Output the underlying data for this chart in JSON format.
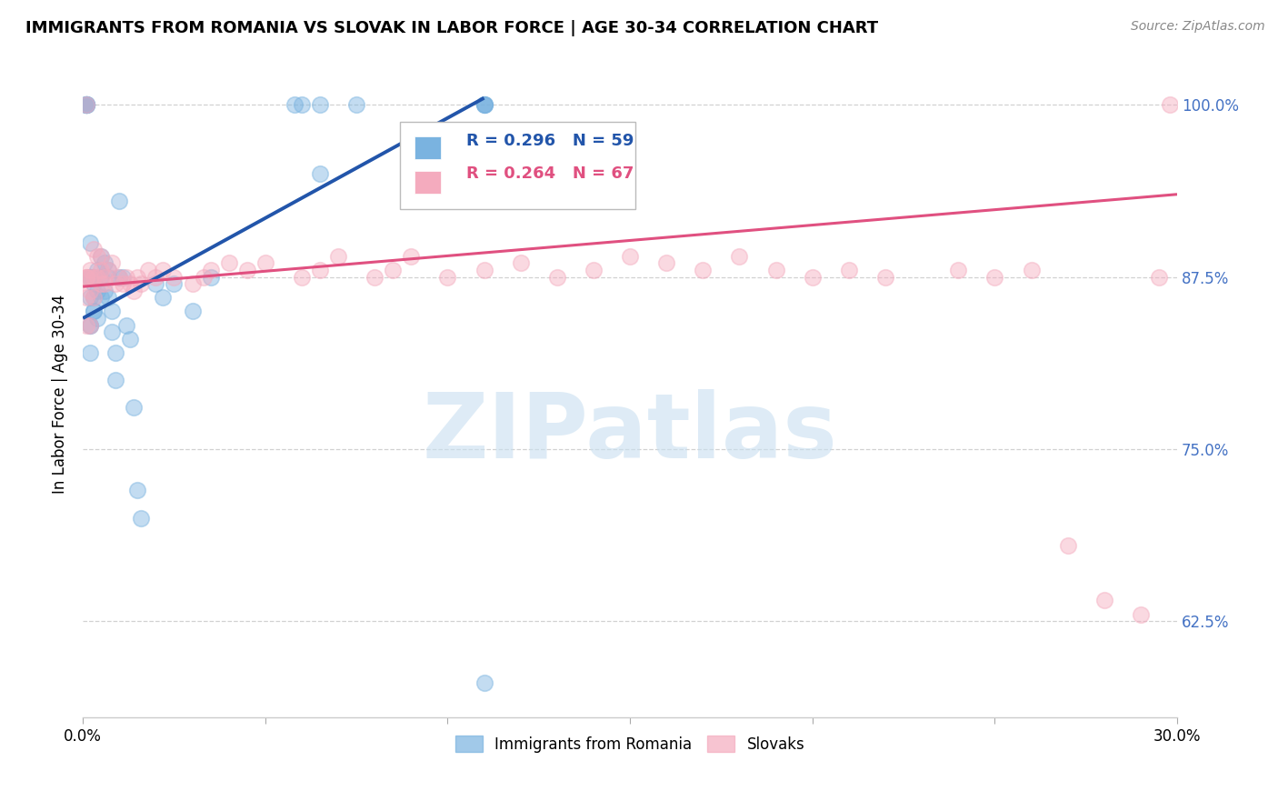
{
  "title": "IMMIGRANTS FROM ROMANIA VS SLOVAK IN LABOR FORCE | AGE 30-34 CORRELATION CHART",
  "source": "Source: ZipAtlas.com",
  "ylabel": "In Labor Force | Age 30-34",
  "xlim": [
    0.0,
    0.3
  ],
  "ylim": [
    0.555,
    1.025
  ],
  "yticks": [
    0.625,
    0.75,
    0.875,
    1.0
  ],
  "ytick_labels": [
    "62.5%",
    "75.0%",
    "87.5%",
    "100.0%"
  ],
  "xticks": [
    0.0,
    0.05,
    0.1,
    0.15,
    0.2,
    0.25,
    0.3
  ],
  "xtick_labels": [
    "0.0%",
    "",
    "",
    "",
    "",
    "",
    "30.0%"
  ],
  "legend_r_blue": "R = 0.296",
  "legend_n_blue": "N = 59",
  "legend_r_pink": "R = 0.264",
  "legend_n_pink": "N = 67",
  "blue_color": "#7AB3E0",
  "pink_color": "#F4ABBE",
  "blue_line_color": "#2255AA",
  "pink_line_color": "#E05080",
  "romania_x": [
    0.001,
    0.001,
    0.001,
    0.001,
    0.001,
    0.001,
    0.001,
    0.001,
    0.002,
    0.002,
    0.002,
    0.002,
    0.002,
    0.002,
    0.002,
    0.002,
    0.003,
    0.003,
    0.003,
    0.003,
    0.003,
    0.004,
    0.004,
    0.004,
    0.005,
    0.005,
    0.005,
    0.006,
    0.006,
    0.007,
    0.007,
    0.007,
    0.008,
    0.008,
    0.009,
    0.009,
    0.01,
    0.01,
    0.011,
    0.012,
    0.013,
    0.014,
    0.015,
    0.016,
    0.02,
    0.022,
    0.025,
    0.03,
    0.035,
    0.058,
    0.06,
    0.065,
    0.065,
    0.075,
    0.11,
    0.11,
    0.11,
    0.11,
    0.11
  ],
  "romania_y": [
    1.0,
    1.0,
    1.0,
    1.0,
    1.0,
    1.0,
    1.0,
    1.0,
    0.9,
    0.875,
    0.875,
    0.86,
    0.84,
    0.84,
    0.82,
    0.875,
    0.875,
    0.87,
    0.86,
    0.85,
    0.85,
    0.88,
    0.865,
    0.845,
    0.89,
    0.875,
    0.86,
    0.885,
    0.865,
    0.88,
    0.875,
    0.86,
    0.85,
    0.835,
    0.82,
    0.8,
    0.93,
    0.875,
    0.875,
    0.84,
    0.83,
    0.78,
    0.72,
    0.7,
    0.87,
    0.86,
    0.87,
    0.85,
    0.875,
    1.0,
    1.0,
    1.0,
    0.95,
    1.0,
    1.0,
    1.0,
    1.0,
    1.0,
    0.58
  ],
  "slovak_x": [
    0.001,
    0.001,
    0.001,
    0.001,
    0.001,
    0.001,
    0.002,
    0.002,
    0.002,
    0.002,
    0.003,
    0.003,
    0.003,
    0.004,
    0.004,
    0.005,
    0.005,
    0.005,
    0.006,
    0.006,
    0.007,
    0.008,
    0.009,
    0.01,
    0.011,
    0.012,
    0.013,
    0.014,
    0.015,
    0.016,
    0.018,
    0.02,
    0.022,
    0.025,
    0.03,
    0.033,
    0.035,
    0.04,
    0.045,
    0.05,
    0.06,
    0.065,
    0.07,
    0.08,
    0.085,
    0.09,
    0.1,
    0.11,
    0.12,
    0.13,
    0.14,
    0.15,
    0.16,
    0.17,
    0.18,
    0.19,
    0.2,
    0.21,
    0.22,
    0.24,
    0.25,
    0.26,
    0.27,
    0.28,
    0.29,
    0.295,
    0.298
  ],
  "slovak_y": [
    0.875,
    0.875,
    0.875,
    0.86,
    0.84,
    1.0,
    0.88,
    0.875,
    0.865,
    0.84,
    0.895,
    0.875,
    0.86,
    0.89,
    0.875,
    0.89,
    0.88,
    0.87,
    0.875,
    0.87,
    0.88,
    0.885,
    0.87,
    0.875,
    0.87,
    0.875,
    0.87,
    0.865,
    0.875,
    0.87,
    0.88,
    0.875,
    0.88,
    0.875,
    0.87,
    0.875,
    0.88,
    0.885,
    0.88,
    0.885,
    0.875,
    0.88,
    0.89,
    0.875,
    0.88,
    0.89,
    0.875,
    0.88,
    0.885,
    0.875,
    0.88,
    0.89,
    0.885,
    0.88,
    0.89,
    0.88,
    0.875,
    0.88,
    0.875,
    0.88,
    0.875,
    0.88,
    0.68,
    0.64,
    0.63,
    0.875,
    1.0
  ],
  "watermark_zip": "ZIP",
  "watermark_atlas": "atlas",
  "background_color": "#ffffff"
}
